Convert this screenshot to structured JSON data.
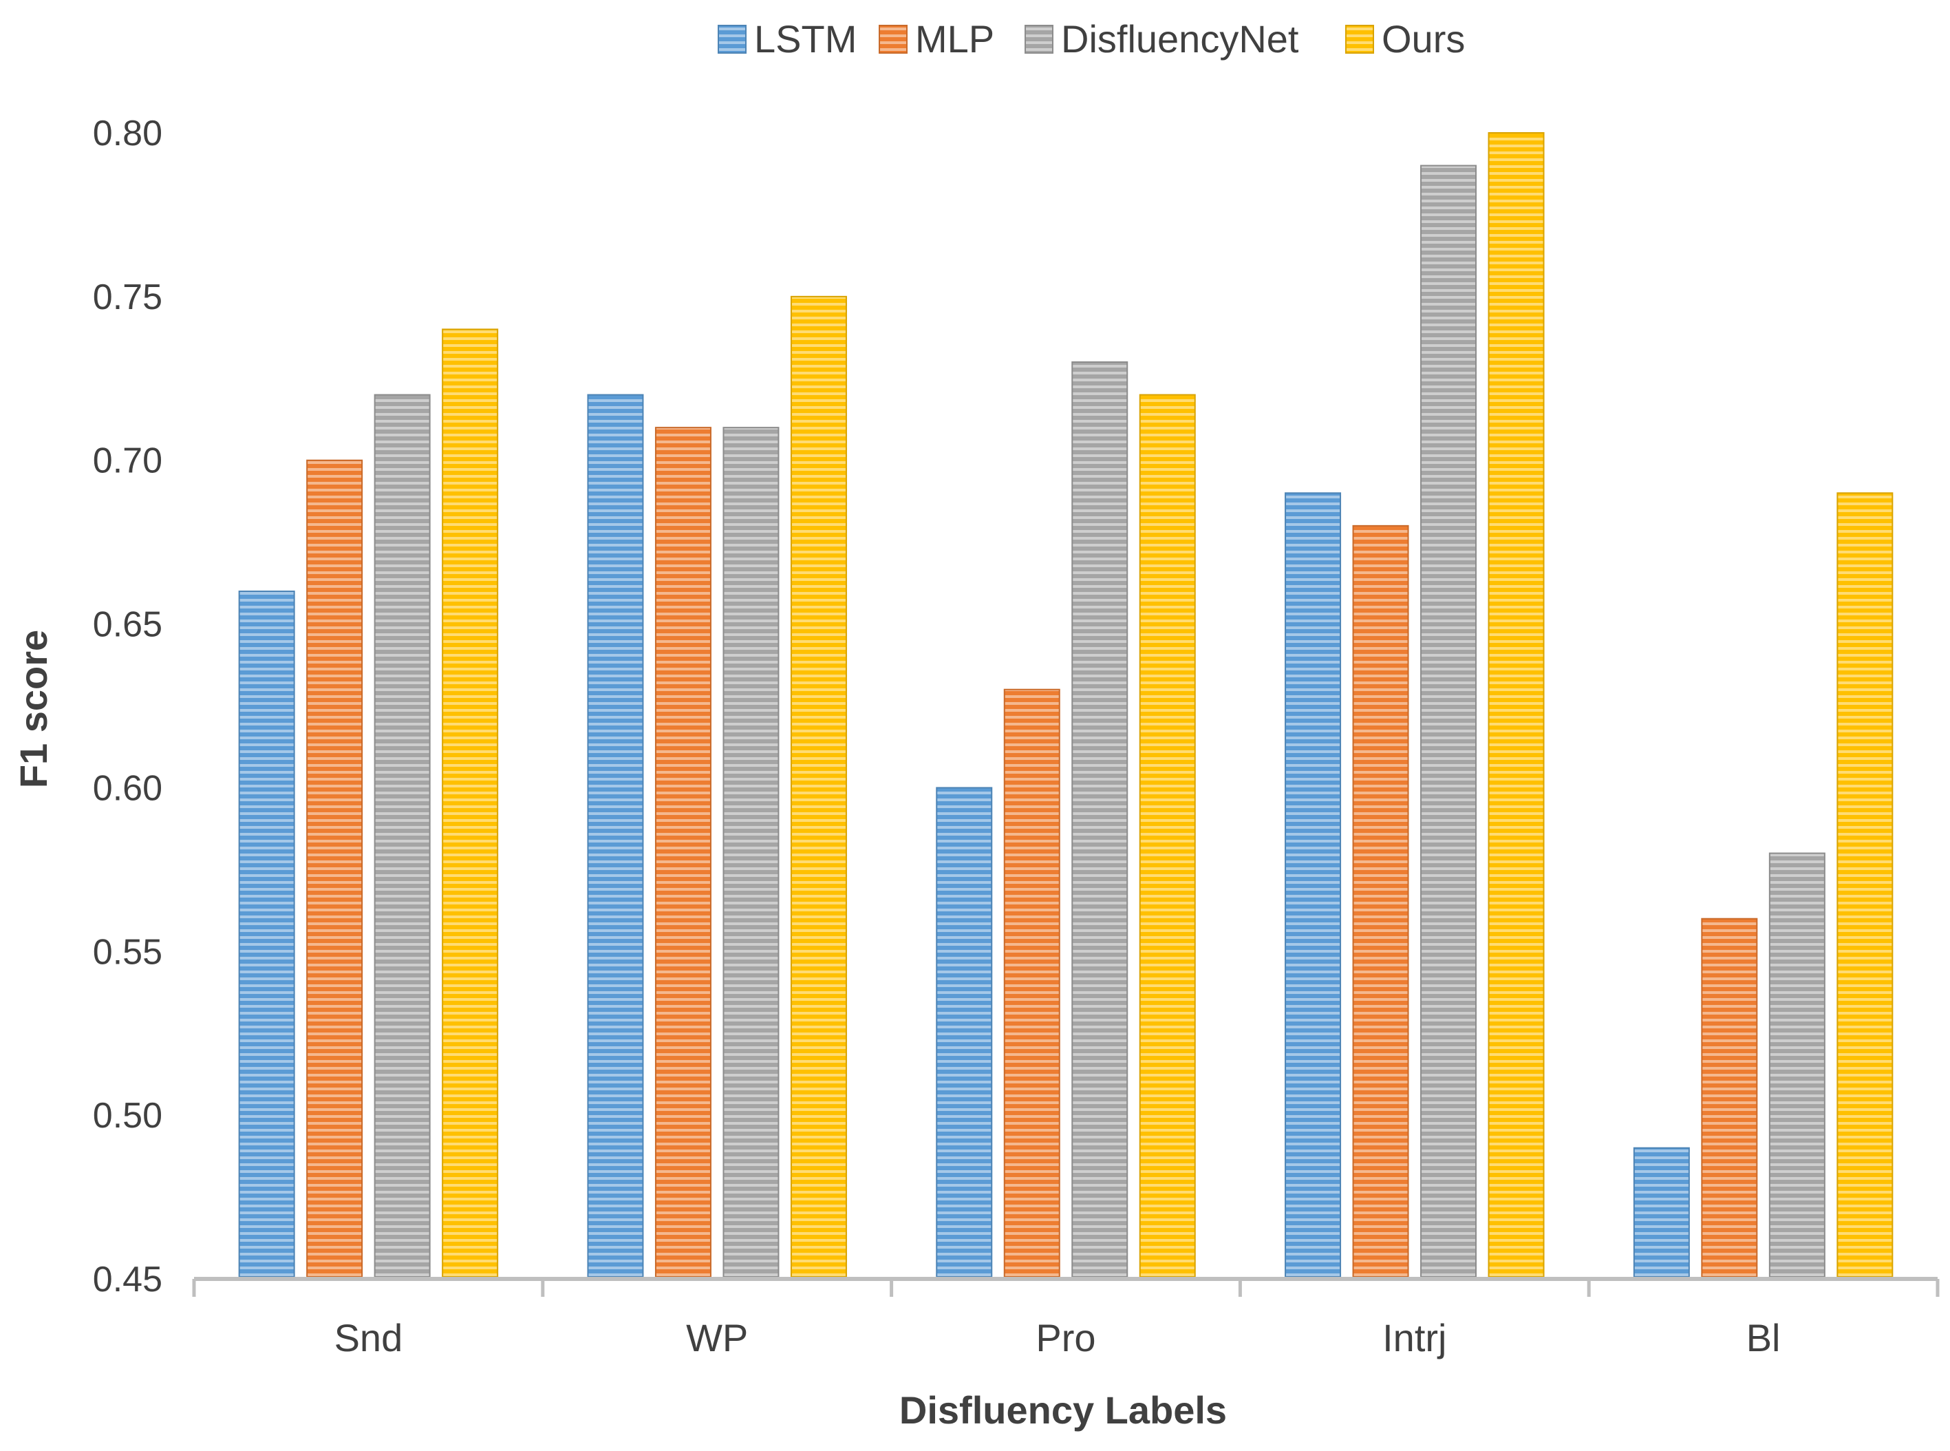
{
  "chart_data": {
    "type": "bar",
    "title": "",
    "xlabel": "Disfluency Labels",
    "ylabel": "F1 score",
    "categories": [
      "Snd",
      "WP",
      "Pro",
      "Intrj",
      "Bl"
    ],
    "ylim": [
      0.45,
      0.8
    ],
    "yticks": [
      "0.45",
      "0.50",
      "0.55",
      "0.60",
      "0.65",
      "0.70",
      "0.75",
      "0.80"
    ],
    "legend_position": "top-center",
    "grid": false,
    "series": [
      {
        "name": "LSTM",
        "color": "#5B9BD5",
        "values": [
          0.66,
          0.72,
          0.6,
          0.69,
          0.49
        ]
      },
      {
        "name": "MLP",
        "color": "#ED7D31",
        "values": [
          0.7,
          0.71,
          0.63,
          0.68,
          0.56
        ]
      },
      {
        "name": "DisfluencyNet",
        "color": "#A5A5A5",
        "values": [
          0.72,
          0.71,
          0.73,
          0.79,
          0.58
        ]
      },
      {
        "name": "Ours",
        "color": "#FFC000",
        "values": [
          0.74,
          0.75,
          0.72,
          0.8,
          0.69
        ]
      }
    ]
  }
}
